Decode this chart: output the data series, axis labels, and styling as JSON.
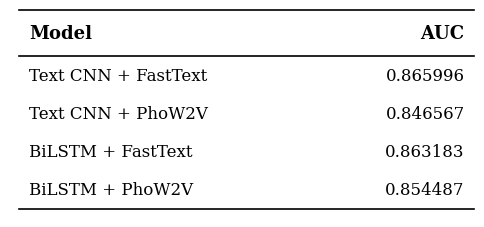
{
  "headers": [
    "Model",
    "AUC"
  ],
  "rows": [
    [
      "Text CNN + FastText",
      "0.865996"
    ],
    [
      "Text CNN + PhoW2V",
      "0.846567"
    ],
    [
      "BiLSTM + FastText",
      "0.863183"
    ],
    [
      "BiLSTM + PhoW2V",
      "0.854487"
    ]
  ],
  "background_color": "#ffffff",
  "text_color": "#000000",
  "header_fontsize": 13,
  "cell_fontsize": 12,
  "figsize": [
    4.84,
    2.28
  ],
  "dpi": 100
}
